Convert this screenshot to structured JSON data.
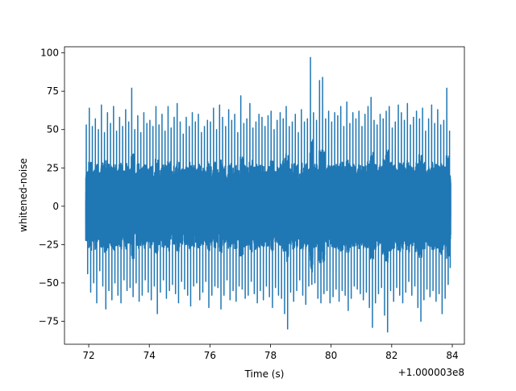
{
  "chart_data": {
    "type": "line",
    "title": "",
    "xlabel": "Time (s)",
    "ylabel": "whitened-noise",
    "x_offset_label": "+1.000003e8",
    "xlim": [
      71.2,
      84.4
    ],
    "ylim": [
      -90,
      104
    ],
    "x_ticks": [
      72,
      74,
      76,
      78,
      80,
      82,
      84
    ],
    "y_ticks": [
      -75,
      -50,
      -25,
      0,
      25,
      50,
      75,
      100
    ],
    "grid": false,
    "legend": "none",
    "series": [
      {
        "color": "#1f77b4",
        "x": [
          71.9,
          72.0,
          72.1,
          72.2,
          72.3,
          72.4,
          72.5,
          72.6,
          72.7,
          72.8,
          72.9,
          73.0,
          73.1,
          73.2,
          73.3,
          73.4,
          73.5,
          73.6,
          73.7,
          73.8,
          73.9,
          74.0,
          74.1,
          74.2,
          74.3,
          74.4,
          74.5,
          74.6,
          74.7,
          74.8,
          74.9,
          75.0,
          75.1,
          75.2,
          75.3,
          75.4,
          75.5,
          75.6,
          75.7,
          75.8,
          75.9,
          76.0,
          76.1,
          76.2,
          76.3,
          76.4,
          76.5,
          76.6,
          76.7,
          76.8,
          76.9,
          77.0,
          77.1,
          77.2,
          77.3,
          77.4,
          77.5,
          77.6,
          77.7,
          77.8,
          77.9,
          78.0,
          78.1,
          78.2,
          78.3,
          78.4,
          78.5,
          78.6,
          78.7,
          78.8,
          78.9,
          79.0,
          79.1,
          79.2,
          79.3,
          79.4,
          79.5,
          79.6,
          79.7,
          79.8,
          79.9,
          80.0,
          80.1,
          80.2,
          80.3,
          80.4,
          80.5,
          80.6,
          80.7,
          80.8,
          80.9,
          81.0,
          81.1,
          81.2,
          81.3,
          81.4,
          81.5,
          81.6,
          81.7,
          81.8,
          81.9,
          82.0,
          82.1,
          82.2,
          82.3,
          82.4,
          82.5,
          82.6,
          82.7,
          82.8,
          82.9,
          83.0,
          83.1,
          83.2,
          83.3,
          83.4,
          83.5,
          83.6,
          83.7,
          83.8,
          83.9
        ],
        "y_max": [
          53,
          64,
          52,
          57,
          50,
          66,
          48,
          61,
          54,
          65,
          49,
          58,
          52,
          63,
          55,
          77,
          50,
          59,
          48,
          61,
          54,
          56,
          52,
          65,
          53,
          60,
          49,
          65,
          51,
          58,
          67,
          55,
          47,
          58,
          52,
          61,
          55,
          60,
          48,
          52,
          56,
          55,
          64,
          50,
          66,
          58,
          52,
          63,
          56,
          60,
          48,
          72,
          54,
          57,
          67,
          51,
          55,
          60,
          58,
          52,
          59,
          62,
          50,
          56,
          61,
          57,
          65,
          52,
          55,
          60,
          48,
          63,
          55,
          57,
          97,
          61,
          56,
          82,
          84,
          57,
          62,
          55,
          61,
          59,
          65,
          52,
          68,
          54,
          61,
          57,
          62,
          52,
          60,
          65,
          71,
          56,
          53,
          60,
          57,
          62,
          65,
          51,
          55,
          66,
          61,
          56,
          67,
          53,
          58,
          62,
          57,
          64,
          49,
          57,
          66,
          54,
          63,
          53,
          56,
          77,
          49
        ],
        "y_min": [
          -44,
          -56,
          -50,
          -63,
          -42,
          -52,
          -67,
          -55,
          -61,
          -50,
          -58,
          -63,
          -48,
          -55,
          -53,
          -59,
          -50,
          -62,
          -58,
          -48,
          -56,
          -61,
          -52,
          -70,
          -56,
          -48,
          -60,
          -55,
          -51,
          -57,
          -63,
          -49,
          -54,
          -58,
          -65,
          -52,
          -50,
          -61,
          -56,
          -49,
          -66,
          -58,
          -52,
          -53,
          -67,
          -58,
          -48,
          -61,
          -55,
          -62,
          -52,
          -54,
          -60,
          -58,
          -49,
          -57,
          -63,
          -55,
          -61,
          -52,
          -59,
          -66,
          -53,
          -58,
          -60,
          -70,
          -80,
          -56,
          -62,
          -55,
          -48,
          -58,
          -64,
          -52,
          -51,
          -50,
          -60,
          -63,
          -57,
          -55,
          -63,
          -59,
          -54,
          -62,
          -55,
          -58,
          -68,
          -60,
          -52,
          -54,
          -57,
          -61,
          -56,
          -66,
          -79,
          -63,
          -57,
          -53,
          -71,
          -82,
          -55,
          -62,
          -53,
          -58,
          -63,
          -56,
          -49,
          -58,
          -52,
          -66,
          -75,
          -61,
          -54,
          -59,
          -55,
          -62,
          -57,
          -70,
          -60,
          -51,
          -40
        ]
      }
    ]
  }
}
